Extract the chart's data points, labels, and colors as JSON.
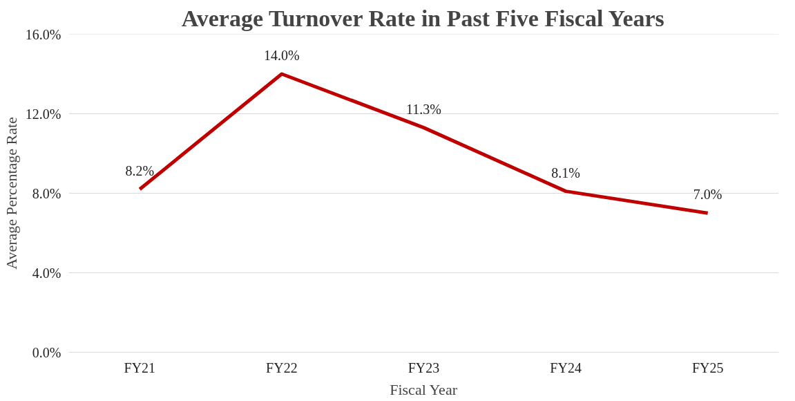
{
  "chart_data": {
    "type": "line",
    "title": "Average Turnover Rate in Past Five Fiscal Years",
    "xlabel": "Fiscal Year",
    "ylabel": "Average Percentage Rate",
    "categories": [
      "FY21",
      "FY22",
      "FY23",
      "FY24",
      "FY25"
    ],
    "series": [
      {
        "color": "#c00000",
        "values": [
          8.2,
          14.0,
          11.3,
          8.1,
          7.0
        ],
        "value_labels": [
          "8.2%",
          "14.0%",
          "11.3%",
          "8.1%",
          "7.0%"
        ]
      }
    ],
    "ylim": [
      0,
      16
    ],
    "yticks": [
      {
        "value": 0,
        "label": "0.0%"
      },
      {
        "value": 4,
        "label": "4.0%"
      },
      {
        "value": 8,
        "label": "8.0%"
      },
      {
        "value": 12,
        "label": "12.0%"
      },
      {
        "value": 16,
        "label": "16.0%"
      }
    ],
    "grid": "y",
    "marker": "none",
    "line_style": "solid"
  }
}
